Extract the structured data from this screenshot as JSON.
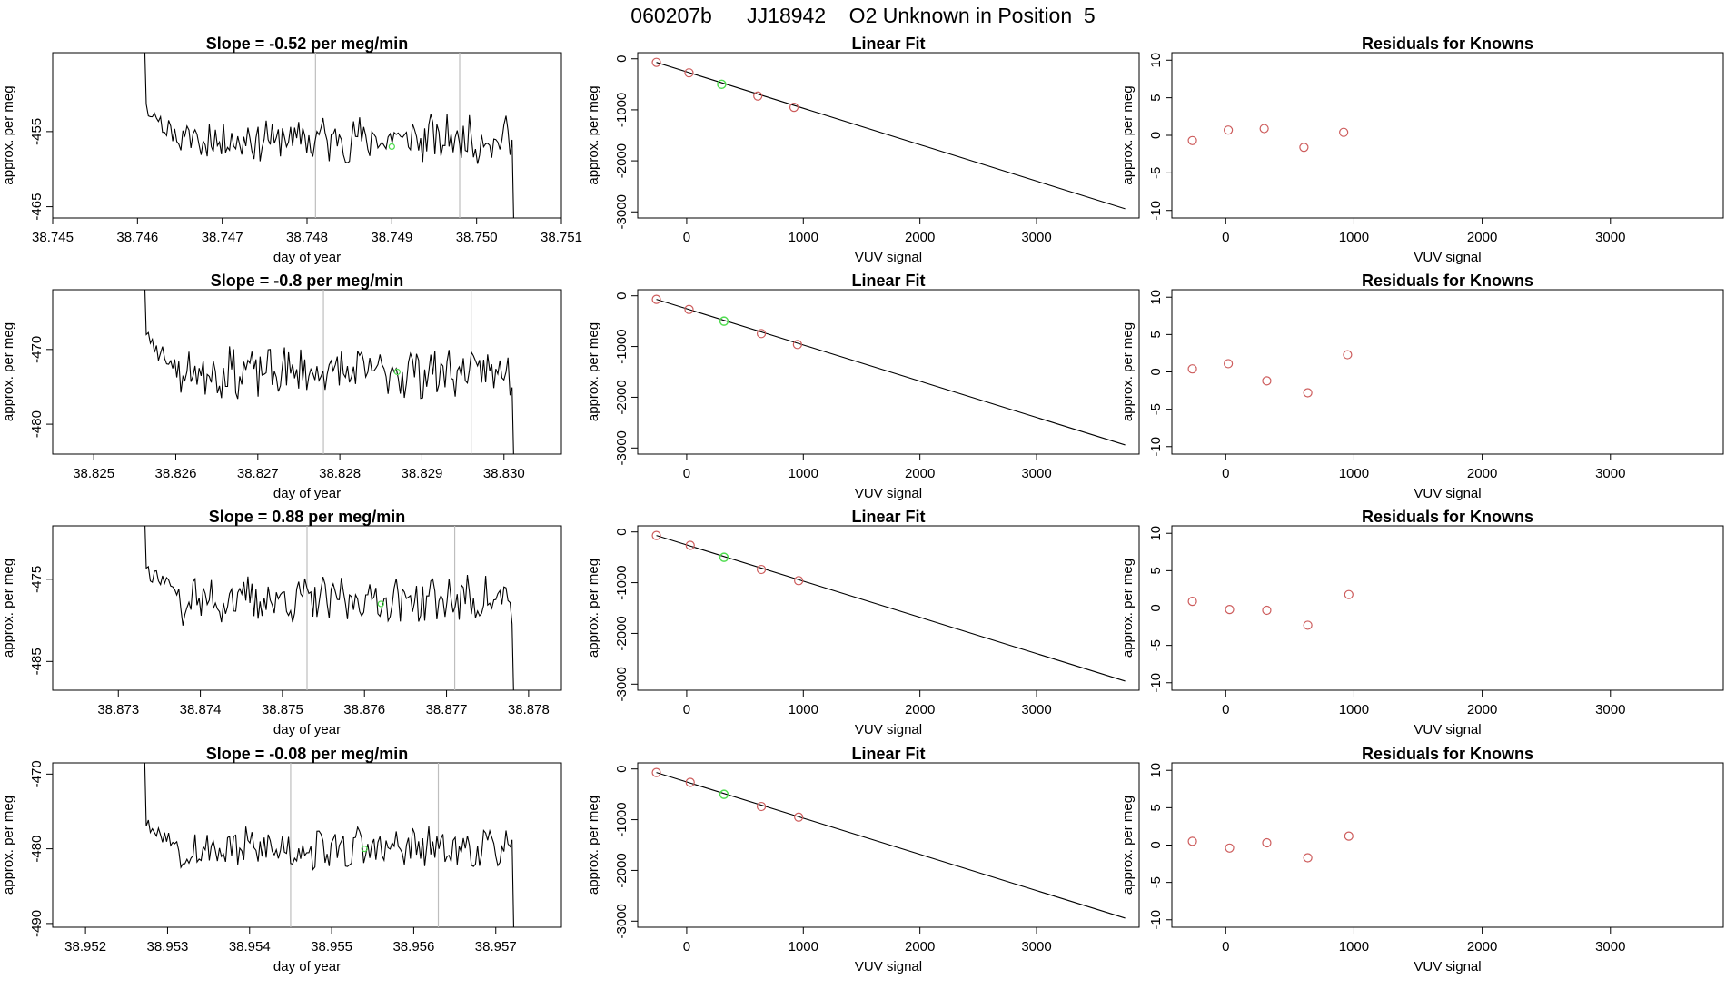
{
  "figure_title": "060207b      JJ18942    O2 Unknown in Position  5",
  "colors": {
    "series": "#000000",
    "known_points": "#cd5c5c",
    "unknown_point": "#4ddc4d",
    "marker_lines": "#bebebe",
    "fit_line": "#000000"
  },
  "chart_data": [
    {
      "type": "line",
      "title": "Slope =  -0.52  per meg/min",
      "xlabel": "day of year",
      "ylabel": "approx. per meg",
      "xlim": [
        38.745,
        38.751
      ],
      "ylim": [
        -466.5,
        -444.5
      ],
      "xticks": [
        "38.745",
        "38.746",
        "38.747",
        "38.748",
        "38.749",
        "38.750",
        "38.751"
      ],
      "yticks": [
        "-455",
        "-465"
      ],
      "markers_x": [
        38.7481,
        38.7498
      ],
      "unknown_point": [
        38.749,
        -457
      ],
      "seed": 11,
      "y_center": -456,
      "y_amp": 2.6
    },
    {
      "type": "line",
      "title": "Linear Fit",
      "xlabel": "VUV signal",
      "ylabel": "approx. per meg",
      "xlim": [
        -420,
        3880
      ],
      "ylim": [
        -3120,
        120
      ],
      "xticks": [
        "0",
        "1000",
        "2000",
        "3000"
      ],
      "yticks": [
        "0",
        "-1000",
        "-2000",
        "-3000"
      ],
      "known_x": [
        -260,
        20,
        610,
        920
      ],
      "known_y": [
        -70,
        -275,
        -730,
        -950
      ],
      "unknown_point": [
        300,
        -500
      ],
      "fit": [
        [
          -260,
          -70
        ],
        [
          3760,
          -2940
        ]
      ]
    },
    {
      "type": "scatter",
      "title": "Residuals for Knowns",
      "xlabel": "VUV signal",
      "ylabel": "approx. per meg",
      "xlim": [
        -420,
        3880
      ],
      "ylim": [
        -11,
        11
      ],
      "xticks": [
        "0",
        "1000",
        "2000",
        "3000"
      ],
      "yticks": [
        "10",
        "5",
        "0",
        "-5",
        "-10"
      ],
      "x": [
        -260,
        20,
        300,
        610,
        920
      ],
      "y": [
        -0.7,
        0.7,
        0.9,
        -1.6,
        0.4
      ]
    },
    {
      "type": "line",
      "title": "Slope =  -0.8  per meg/min",
      "xlabel": "day of year",
      "ylabel": "approx. per meg",
      "xlim": [
        38.8245,
        38.8307
      ],
      "ylim": [
        -484,
        -462
      ],
      "xticks": [
        "38.825",
        "38.826",
        "38.827",
        "38.828",
        "38.829",
        "38.830"
      ],
      "yticks": [
        "-470",
        "-480"
      ],
      "markers_x": [
        38.8278,
        38.8296
      ],
      "unknown_point": [
        38.8287,
        -473
      ],
      "seed": 23,
      "y_center": -473,
      "y_amp": 2.8
    },
    {
      "type": "line",
      "title": "Linear Fit",
      "xlabel": "VUV signal",
      "ylabel": "approx. per meg",
      "xlim": [
        -420,
        3880
      ],
      "ylim": [
        -3120,
        120
      ],
      "xticks": [
        "0",
        "1000",
        "2000",
        "3000"
      ],
      "yticks": [
        "0",
        "-1000",
        "-2000",
        "-3000"
      ],
      "known_x": [
        -260,
        20,
        640,
        950
      ],
      "known_y": [
        -70,
        -270,
        -745,
        -960
      ],
      "unknown_point": [
        320,
        -500
      ],
      "fit": [
        [
          -260,
          -70
        ],
        [
          3760,
          -2940
        ]
      ]
    },
    {
      "type": "scatter",
      "title": "Residuals for Knowns",
      "xlabel": "VUV signal",
      "ylabel": "approx. per meg",
      "xlim": [
        -420,
        3880
      ],
      "ylim": [
        -11,
        11
      ],
      "xticks": [
        "0",
        "1000",
        "2000",
        "3000"
      ],
      "yticks": [
        "10",
        "5",
        "0",
        "-5",
        "-10"
      ],
      "x": [
        -260,
        20,
        320,
        640,
        950
      ],
      "y": [
        0.4,
        1.1,
        -1.2,
        -2.8,
        2.3
      ]
    },
    {
      "type": "line",
      "title": "Slope =  0.88  per meg/min",
      "xlabel": "day of year",
      "ylabel": "approx. per meg",
      "xlim": [
        38.8722,
        38.8784
      ],
      "ylim": [
        -488.5,
        -468.5
      ],
      "xticks": [
        "38.873",
        "38.874",
        "38.875",
        "38.876",
        "38.877",
        "38.878"
      ],
      "yticks": [
        "-475",
        "-485"
      ],
      "markers_x": [
        38.8753,
        38.8771
      ],
      "unknown_point": [
        38.8762,
        -478
      ],
      "seed": 37,
      "y_center": -477.5,
      "y_amp": 2.4
    },
    {
      "type": "line",
      "title": "Linear Fit",
      "xlabel": "VUV signal",
      "ylabel": "approx. per meg",
      "xlim": [
        -420,
        3880
      ],
      "ylim": [
        -3120,
        120
      ],
      "xticks": [
        "0",
        "1000",
        "2000",
        "3000"
      ],
      "yticks": [
        "0",
        "-1000",
        "-2000",
        "-3000"
      ],
      "known_x": [
        -260,
        30,
        640,
        960
      ],
      "known_y": [
        -70,
        -265,
        -740,
        -960
      ],
      "unknown_point": [
        320,
        -500
      ],
      "fit": [
        [
          -260,
          -70
        ],
        [
          3760,
          -2940
        ]
      ]
    },
    {
      "type": "scatter",
      "title": "Residuals for Knowns",
      "xlabel": "VUV signal",
      "ylabel": "approx. per meg",
      "xlim": [
        -420,
        3880
      ],
      "ylim": [
        -11,
        11
      ],
      "xticks": [
        "0",
        "1000",
        "2000",
        "3000"
      ],
      "yticks": [
        "10",
        "5",
        "0",
        "-5",
        "-10"
      ],
      "x": [
        -260,
        30,
        320,
        640,
        960
      ],
      "y": [
        0.9,
        -0.2,
        -0.3,
        -2.3,
        1.8
      ]
    },
    {
      "type": "line",
      "title": "Slope =  -0.08  per meg/min",
      "xlabel": "day of year",
      "ylabel": "approx. per meg",
      "xlim": [
        38.9516,
        38.9578
      ],
      "ylim": [
        -490.5,
        -468.5
      ],
      "xticks": [
        "38.952",
        "38.953",
        "38.954",
        "38.955",
        "38.956",
        "38.957"
      ],
      "yticks": [
        "-470",
        "-480",
        "-490"
      ],
      "markers_x": [
        38.9545,
        38.9563
      ],
      "unknown_point": [
        38.9554,
        -480
      ],
      "seed": 53,
      "y_center": -480,
      "y_amp": 2.4
    },
    {
      "type": "line",
      "title": "Linear Fit",
      "xlabel": "VUV signal",
      "ylabel": "approx. per meg",
      "xlim": [
        -420,
        3880
      ],
      "ylim": [
        -3120,
        120
      ],
      "xticks": [
        "0",
        "1000",
        "2000",
        "3000"
      ],
      "yticks": [
        "0",
        "-1000",
        "-2000",
        "-3000"
      ],
      "known_x": [
        -260,
        30,
        640,
        960
      ],
      "known_y": [
        -70,
        -265,
        -740,
        -950
      ],
      "unknown_point": [
        320,
        -500
      ],
      "fit": [
        [
          -260,
          -70
        ],
        [
          3760,
          -2940
        ]
      ]
    },
    {
      "type": "scatter",
      "title": "Residuals for Knowns",
      "xlabel": "VUV signal",
      "ylabel": "approx. per meg",
      "xlim": [
        -420,
        3880
      ],
      "ylim": [
        -11,
        11
      ],
      "xticks": [
        "0",
        "1000",
        "2000",
        "3000"
      ],
      "yticks": [
        "10",
        "5",
        "0",
        "-5",
        "-10"
      ],
      "x": [
        -260,
        30,
        320,
        640,
        960
      ],
      "y": [
        0.5,
        -0.4,
        0.3,
        -1.7,
        1.2
      ]
    }
  ]
}
